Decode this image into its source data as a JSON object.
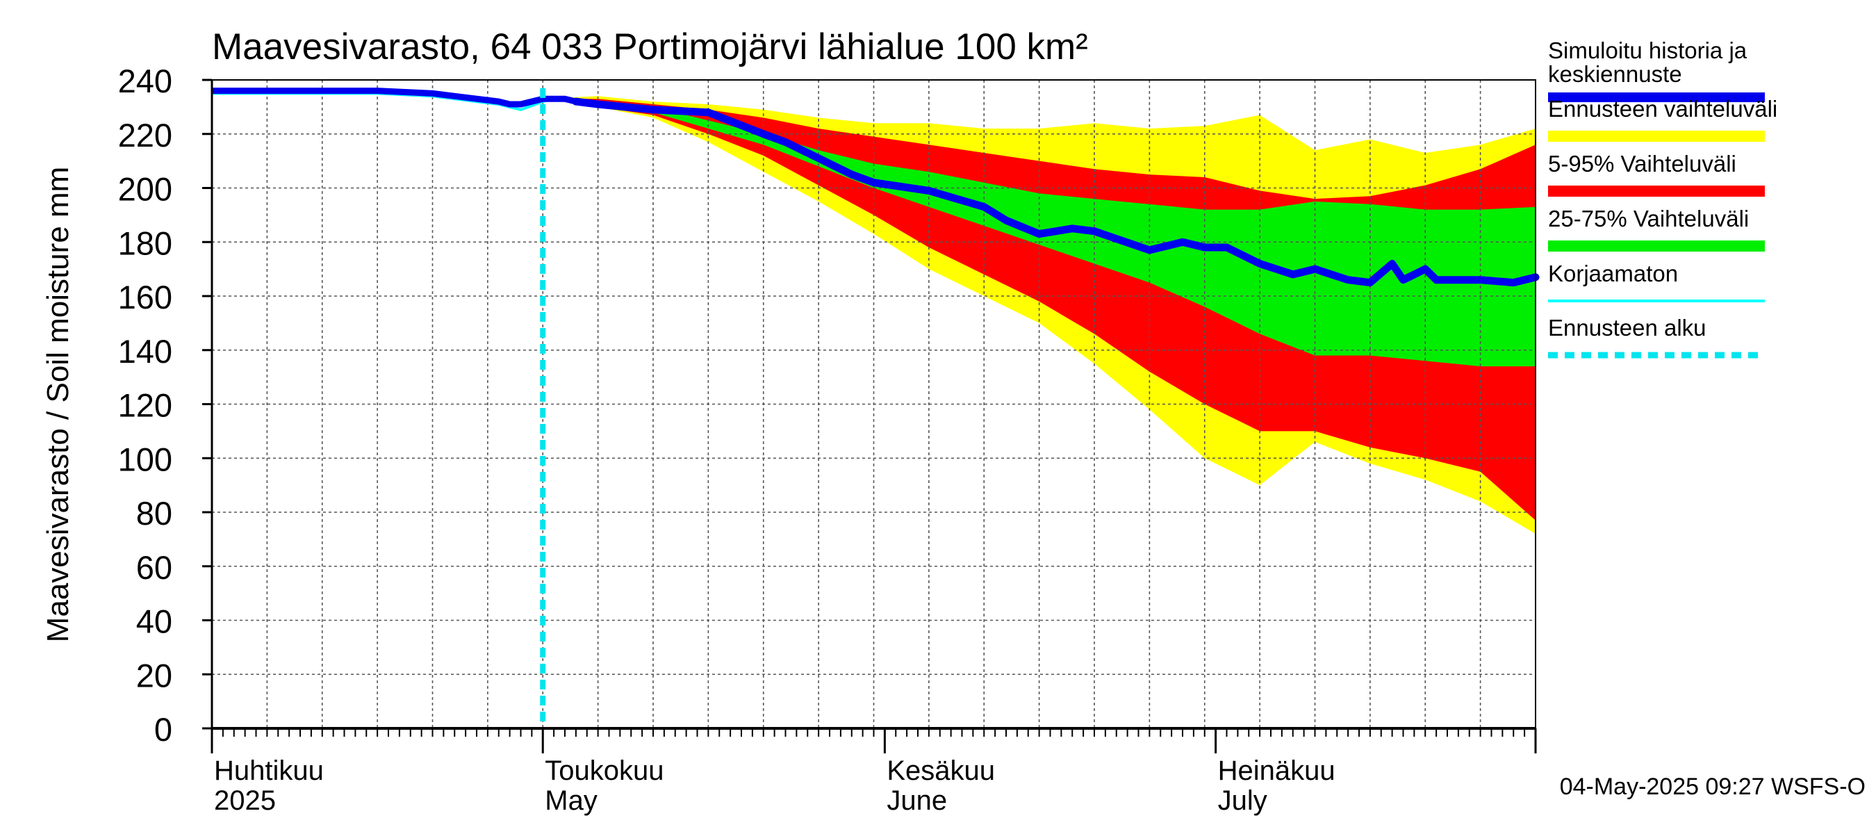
{
  "chart_data": {
    "type": "area",
    "title": "Maavesivarasto, 64 033 Portimojärvi lähialue 100 km²",
    "ylabel": "Maavesivarasto / Soil moisture   mm",
    "ylim": [
      0,
      240
    ],
    "yticks": [
      0,
      20,
      40,
      60,
      80,
      100,
      120,
      140,
      160,
      180,
      200,
      220,
      240
    ],
    "x_range_days": [
      0,
      120
    ],
    "month_labels": [
      {
        "fi": "Huhtikuu",
        "en": "2025",
        "day": 0
      },
      {
        "fi": "Toukokuu",
        "en": "May",
        "day": 30
      },
      {
        "fi": "Kesäkuu",
        "en": "June",
        "day": 61
      },
      {
        "fi": "Heinäkuu",
        "en": "July",
        "day": 91
      }
    ],
    "month_boundaries": [
      0,
      30,
      61,
      91,
      120
    ],
    "forecast_start_day": 30,
    "timestamp": "04-May-2025 09:27 WSFS-O",
    "legend": [
      {
        "label": "Simuloitu historia ja",
        "label2": "keskiennuste",
        "color": "#0000ee",
        "style": "thick"
      },
      {
        "label": "Ennusteen vaihteluväli",
        "color": "#ffff00",
        "style": "band"
      },
      {
        "label": "5-95% Vaihteluväli",
        "color": "#ff0000",
        "style": "band"
      },
      {
        "label": "25-75% Vaihteluväli",
        "color": "#00ee00",
        "style": "band"
      },
      {
        "label": "Korjaamaton",
        "color": "#00ffff",
        "style": "thin"
      },
      {
        "label": "Ennusteen alku",
        "color": "#00e5ee",
        "style": "dashed"
      }
    ],
    "series": {
      "history_days": [
        0,
        5,
        10,
        15,
        20,
        22,
        24,
        26,
        27,
        28,
        30,
        31,
        32,
        33
      ],
      "history_values": [
        236,
        236,
        236,
        236,
        235,
        234,
        233,
        232,
        231,
        231,
        233,
        233,
        233,
        232
      ],
      "uncorrected_days": [
        0,
        5,
        10,
        15,
        20,
        22,
        24,
        26,
        27,
        28,
        30,
        31,
        32,
        33
      ],
      "uncorrected_values": [
        235,
        235,
        235,
        235,
        234,
        233,
        232,
        231,
        230,
        229,
        232,
        233,
        233,
        232
      ],
      "band_days": [
        30,
        35,
        40,
        45,
        50,
        55,
        60,
        65,
        70,
        75,
        80,
        85,
        90,
        95,
        100,
        105,
        110,
        115,
        120
      ],
      "envelope_max": [
        233,
        234,
        232,
        231,
        229,
        226,
        224,
        224,
        222,
        222,
        224,
        222,
        223,
        227,
        214,
        218,
        213,
        216,
        222
      ],
      "p95": [
        233,
        233,
        231,
        229,
        226,
        222,
        219,
        216,
        213,
        210,
        207,
        205,
        204,
        199,
        196,
        197,
        201,
        207,
        216
      ],
      "p75": [
        233,
        232,
        230,
        225,
        220,
        214,
        209,
        206,
        202,
        198,
        196,
        194,
        192,
        192,
        195,
        194,
        192,
        192,
        193
      ],
      "p25": [
        233,
        231,
        228,
        222,
        216,
        208,
        200,
        193,
        186,
        179,
        172,
        165,
        156,
        146,
        138,
        138,
        136,
        134,
        134
      ],
      "p5": [
        233,
        230,
        227,
        220,
        212,
        201,
        190,
        178,
        168,
        158,
        146,
        132,
        120,
        110,
        110,
        104,
        100,
        95,
        77
      ],
      "envelope_min": [
        233,
        230,
        226,
        217,
        206,
        195,
        183,
        170,
        160,
        150,
        135,
        118,
        100,
        90,
        106,
        98,
        92,
        84,
        72
      ],
      "mean_days": [
        33,
        35,
        40,
        45,
        50,
        52,
        55,
        58,
        60,
        65,
        70,
        72,
        75,
        78,
        80,
        85,
        88,
        90,
        92,
        95,
        98,
        100,
        103,
        105,
        107,
        108,
        110,
        111,
        113,
        115,
        118,
        120
      ],
      "mean_values": [
        232,
        231,
        229,
        228,
        220,
        217,
        211,
        205,
        202,
        199,
        193,
        188,
        183,
        185,
        184,
        177,
        180,
        178,
        178,
        172,
        168,
        170,
        166,
        165,
        172,
        166,
        170,
        166,
        166,
        166,
        165,
        167
      ]
    }
  }
}
